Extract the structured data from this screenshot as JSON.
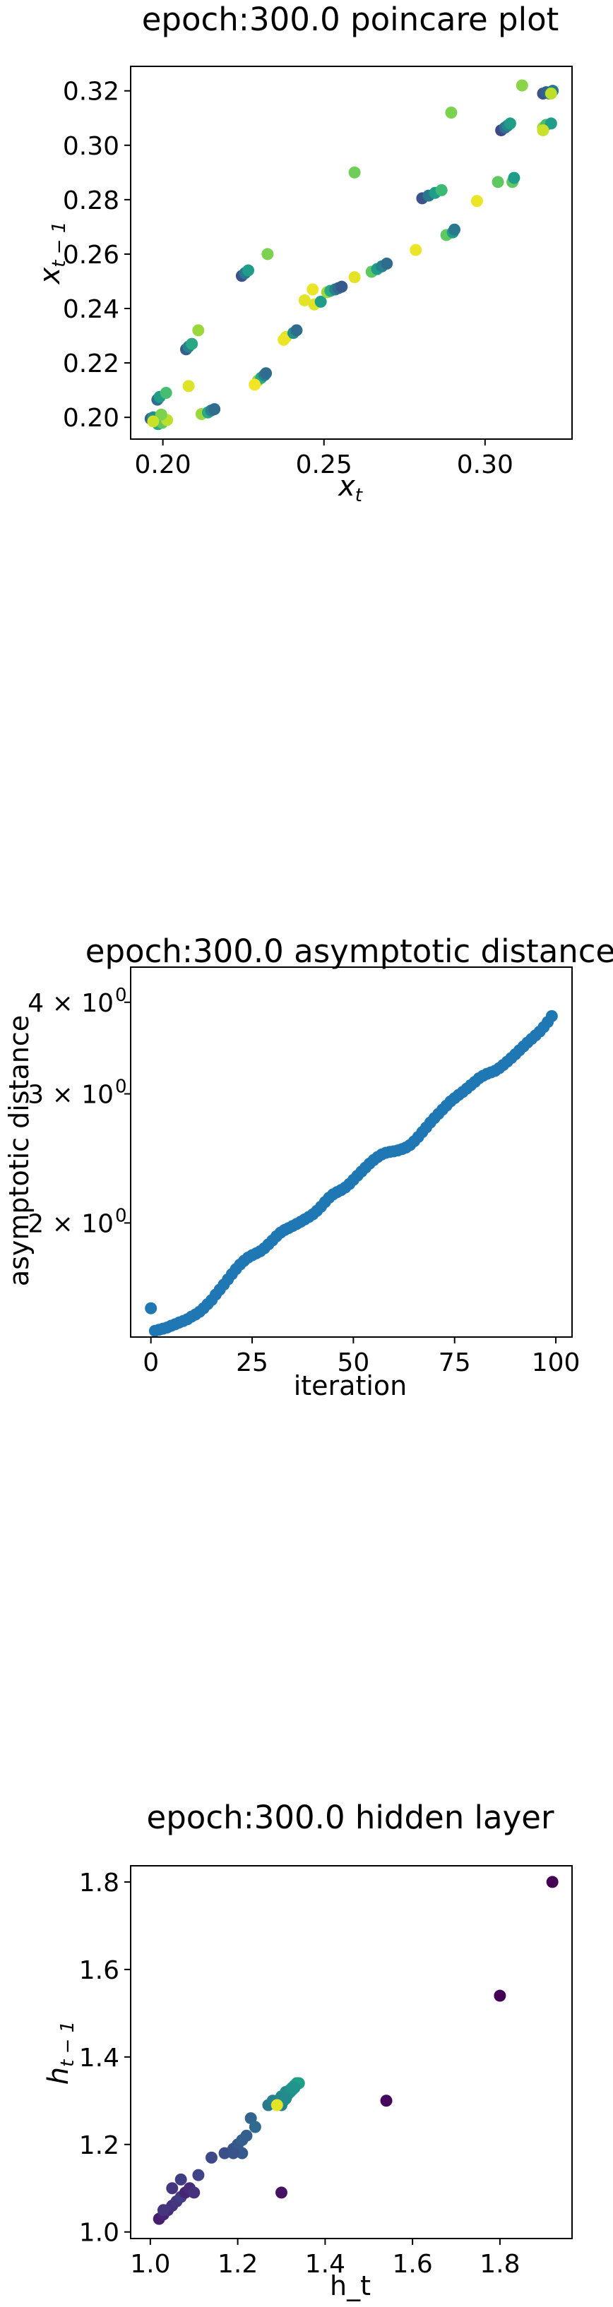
{
  "chart_data": [
    {
      "type": "scatter",
      "title": "epoch:300.0 poincare plot",
      "xlabel": "x_t",
      "ylabel": "x_{t-1}",
      "xlim": [
        0.19,
        0.327
      ],
      "ylim": [
        0.192,
        0.329
      ],
      "xticks": [
        0.2,
        0.25,
        0.3
      ],
      "xtick_labels": [
        "0.20",
        "0.25",
        "0.30"
      ],
      "yticks": [
        0.2,
        0.22,
        0.24,
        0.26,
        0.28,
        0.3,
        0.32
      ],
      "ytick_labels": [
        "0.20",
        "0.22",
        "0.24",
        "0.26",
        "0.28",
        "0.30",
        "0.32"
      ],
      "colormap": "viridis",
      "x": [
        0.1962,
        0.1975,
        0.1985,
        0.1998,
        0.2013,
        0.197,
        0.1995,
        0.1983,
        0.199,
        0.201,
        0.2072,
        0.208,
        0.209,
        0.212,
        0.214,
        0.215,
        0.216,
        0.2245,
        0.2255,
        0.2265,
        0.2295,
        0.2305,
        0.2315,
        0.232,
        0.2382,
        0.2405,
        0.2415,
        0.247,
        0.249,
        0.251,
        0.252,
        0.2535,
        0.2545,
        0.2555,
        0.2648,
        0.2665,
        0.268,
        0.2695,
        0.2805,
        0.2825,
        0.2845,
        0.2865,
        0.288,
        0.29,
        0.2905,
        0.305,
        0.3062,
        0.307,
        0.3078,
        0.3085,
        0.309,
        0.318,
        0.319,
        0.32,
        0.321,
        0.318,
        0.319,
        0.3205,
        0.211,
        0.2285,
        0.2375,
        0.244,
        0.2465,
        0.2595,
        0.2785,
        0.2975,
        0.304,
        0.3115,
        0.318,
        0.3205,
        0.2325,
        0.2595,
        0.2895,
        0.208,
        0.197
      ],
      "y": [
        0.1995,
        0.1985,
        0.1975,
        0.198,
        0.199,
        0.2,
        0.201,
        0.2065,
        0.2075,
        0.209,
        0.225,
        0.226,
        0.227,
        0.2012,
        0.2018,
        0.2025,
        0.203,
        0.252,
        0.253,
        0.254,
        0.2135,
        0.2145,
        0.2155,
        0.2162,
        0.2295,
        0.231,
        0.232,
        0.2415,
        0.2425,
        0.246,
        0.2465,
        0.247,
        0.2475,
        0.248,
        0.2535,
        0.2545,
        0.2555,
        0.2565,
        0.2805,
        0.2815,
        0.2825,
        0.2835,
        0.267,
        0.268,
        0.269,
        0.3055,
        0.3065,
        0.3072,
        0.308,
        0.2865,
        0.288,
        0.319,
        0.3195,
        0.319,
        0.32,
        0.3065,
        0.3075,
        0.308,
        0.232,
        0.212,
        0.2285,
        0.243,
        0.247,
        0.2515,
        0.2615,
        0.2795,
        0.2865,
        0.322,
        0.3055,
        0.319,
        0.26,
        0.29,
        0.312,
        0.2115,
        0.1985
      ],
      "c": [
        0.3,
        0.45,
        0.6,
        0.75,
        0.9,
        0.5,
        0.8,
        0.35,
        0.55,
        0.7,
        0.3,
        0.45,
        0.6,
        0.85,
        0.6,
        0.45,
        0.35,
        0.25,
        0.4,
        0.55,
        0.85,
        0.6,
        0.45,
        0.35,
        0.95,
        0.5,
        0.35,
        0.95,
        0.55,
        0.85,
        0.6,
        0.45,
        0.35,
        0.28,
        0.75,
        0.55,
        0.45,
        0.35,
        0.25,
        0.4,
        0.55,
        0.68,
        0.75,
        0.55,
        0.4,
        0.22,
        0.35,
        0.45,
        0.55,
        0.75,
        0.55,
        0.25,
        0.3,
        0.35,
        0.4,
        0.85,
        0.7,
        0.55,
        0.85,
        0.98,
        0.97,
        0.96,
        0.97,
        0.96,
        0.97,
        0.97,
        0.75,
        0.82,
        0.92,
        0.9,
        0.8,
        0.78,
        0.8,
        0.95,
        0.92
      ]
    },
    {
      "type": "scatter",
      "title": "epoch:300.0 asymptotic distance",
      "xlabel": "iteration",
      "ylabel": "asymptotic distance",
      "xlim": [
        -5,
        104
      ],
      "ylim_log": [
        1.3977,
        4.4668
      ],
      "yscale": "log",
      "xticks": [
        0,
        25,
        50,
        75,
        100
      ],
      "xtick_labels": [
        "0",
        "25",
        "50",
        "75",
        "100"
      ],
      "yticks": [
        2,
        3,
        4
      ],
      "ytick_labels": [
        "2 × 10",
        "3 × 10",
        "4 × 10"
      ],
      "ytick_exponent": "0",
      "color": "#1f77b4",
      "x": [
        0,
        1,
        2,
        3,
        4,
        5,
        6,
        7,
        8,
        9,
        10,
        11,
        12,
        13,
        14,
        15,
        16,
        17,
        18,
        19,
        20,
        21,
        22,
        23,
        24,
        25,
        26,
        27,
        28,
        29,
        30,
        31,
        32,
        33,
        34,
        35,
        36,
        37,
        38,
        39,
        40,
        41,
        42,
        43,
        44,
        45,
        46,
        47,
        48,
        49,
        50,
        51,
        52,
        53,
        54,
        55,
        56,
        57,
        58,
        59,
        60,
        61,
        62,
        63,
        64,
        65,
        66,
        67,
        68,
        69,
        70,
        71,
        72,
        73,
        74,
        75,
        76,
        77,
        78,
        79,
        80,
        81,
        82,
        83,
        84,
        85,
        86,
        87,
        88,
        89,
        90,
        91,
        92,
        93,
        94,
        95,
        96,
        97,
        98,
        99
      ],
      "y": [
        1.53,
        1.425,
        1.43,
        1.435,
        1.44,
        1.448,
        1.455,
        1.463,
        1.47,
        1.478,
        1.49,
        1.5,
        1.513,
        1.53,
        1.55,
        1.57,
        1.597,
        1.622,
        1.648,
        1.675,
        1.703,
        1.73,
        1.755,
        1.776,
        1.794,
        1.807,
        1.818,
        1.83,
        1.847,
        1.87,
        1.893,
        1.918,
        1.94,
        1.956,
        1.968,
        1.981,
        1.994,
        2.008,
        2.023,
        2.038,
        2.055,
        2.078,
        2.105,
        2.136,
        2.165,
        2.188,
        2.204,
        2.218,
        2.236,
        2.26,
        2.29,
        2.32,
        2.35,
        2.38,
        2.41,
        2.437,
        2.46,
        2.48,
        2.493,
        2.5,
        2.505,
        2.512,
        2.522,
        2.535,
        2.555,
        2.585,
        2.62,
        2.66,
        2.7,
        2.742,
        2.78,
        2.817,
        2.855,
        2.892,
        2.93,
        2.96,
        2.99,
        3.018,
        3.05,
        3.083,
        3.115,
        3.15,
        3.175,
        3.195,
        3.21,
        3.225,
        3.252,
        3.285,
        3.32,
        3.358,
        3.398,
        3.44,
        3.482,
        3.525,
        3.565,
        3.605,
        3.648,
        3.7,
        3.76,
        3.83
      ]
    },
    {
      "type": "scatter",
      "title": "epoch:300.0 hidden layer",
      "xlabel": "h_t",
      "ylabel": "h_{t-1}",
      "xlim": [
        0.955,
        1.965
      ],
      "ylim": [
        0.985,
        1.837
      ],
      "xticks": [
        1.0,
        1.2,
        1.4,
        1.6,
        1.8
      ],
      "xtick_labels": [
        "1.0",
        "1.2",
        "1.4",
        "1.6",
        "1.8"
      ],
      "yticks": [
        1.0,
        1.2,
        1.4,
        1.6,
        1.8
      ],
      "ytick_labels": [
        "1.0",
        "1.2",
        "1.4",
        "1.6",
        "1.8"
      ],
      "colormap": "viridis",
      "x": [
        1.92,
        1.8,
        1.54,
        1.3,
        1.02,
        1.03,
        1.04,
        1.05,
        1.06,
        1.07,
        1.08,
        1.09,
        1.1,
        1.03,
        1.05,
        1.07,
        1.11,
        1.14,
        1.17,
        1.19,
        1.2,
        1.21,
        1.22,
        1.23,
        1.21,
        1.19,
        1.24,
        1.27,
        1.28,
        1.29,
        1.3,
        1.31,
        1.32,
        1.325,
        1.33,
        1.335,
        1.34,
        1.31,
        1.315,
        1.32,
        1.325,
        1.33,
        1.3,
        1.305,
        1.31,
        1.29
      ],
      "y": [
        1.8,
        1.54,
        1.3,
        1.09,
        1.03,
        1.04,
        1.05,
        1.06,
        1.07,
        1.08,
        1.09,
        1.1,
        1.09,
        1.05,
        1.1,
        1.12,
        1.13,
        1.17,
        1.18,
        1.19,
        1.2,
        1.21,
        1.22,
        1.26,
        1.18,
        1.18,
        1.24,
        1.29,
        1.3,
        1.3,
        1.31,
        1.32,
        1.325,
        1.33,
        1.335,
        1.34,
        1.34,
        1.31,
        1.315,
        1.32,
        1.325,
        1.33,
        1.29,
        1.3,
        1.305,
        1.29
      ],
      "c": [
        0.0,
        0.0,
        0.02,
        0.05,
        0.08,
        0.1,
        0.12,
        0.14,
        0.16,
        0.18,
        0.1,
        0.12,
        0.14,
        0.15,
        0.16,
        0.18,
        0.2,
        0.22,
        0.24,
        0.26,
        0.28,
        0.3,
        0.3,
        0.32,
        0.28,
        0.26,
        0.34,
        0.4,
        0.43,
        0.45,
        0.47,
        0.49,
        0.5,
        0.52,
        0.53,
        0.55,
        0.56,
        0.46,
        0.48,
        0.5,
        0.51,
        0.52,
        0.44,
        0.45,
        0.48,
        0.96
      ]
    }
  ]
}
